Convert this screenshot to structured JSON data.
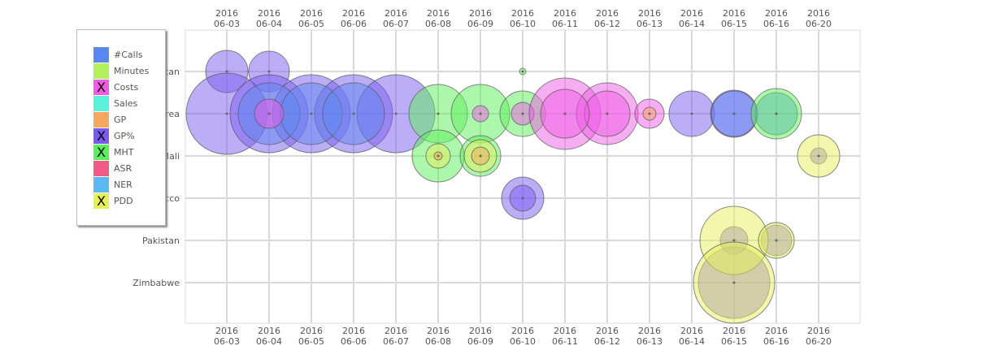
{
  "chart_data": {
    "type": "scatter",
    "x_categories": [
      [
        "2016",
        "06-03"
      ],
      [
        "2016",
        "06-04"
      ],
      [
        "2016",
        "06-05"
      ],
      [
        "2016",
        "06-06"
      ],
      [
        "2016",
        "06-07"
      ],
      [
        "2016",
        "06-08"
      ],
      [
        "2016",
        "06-09"
      ],
      [
        "2016",
        "06-10"
      ],
      [
        "2016",
        "06-11"
      ],
      [
        "2016",
        "06-12"
      ],
      [
        "2016",
        "06-13"
      ],
      [
        "2016",
        "06-14"
      ],
      [
        "2016",
        "06-15"
      ],
      [
        "2016",
        "06-16"
      ],
      [
        "2016",
        "06-20"
      ]
    ],
    "y_categories": [
      "Afghanistan",
      "Eritrea",
      "Mali",
      "Morocco",
      "Pakistan",
      "Zimbabwe"
    ],
    "legend": [
      {
        "label": "#Calls",
        "color": "#5b87f0",
        "disabled": false
      },
      {
        "label": "Minutes",
        "color": "#b3f05b",
        "disabled": false
      },
      {
        "label": "Costs",
        "color": "#f05be6",
        "disabled": true
      },
      {
        "label": "Sales",
        "color": "#5bf0d9",
        "disabled": false
      },
      {
        "label": "GP",
        "color": "#f5a85e",
        "disabled": false
      },
      {
        "label": "GP%",
        "color": "#7a5bf0",
        "disabled": true
      },
      {
        "label": "MHT",
        "color": "#5bf05b",
        "disabled": true
      },
      {
        "label": "ASR",
        "color": "#f05b87",
        "disabled": false
      },
      {
        "label": "NER",
        "color": "#5bb8f0",
        "disabled": false
      },
      {
        "label": "PDD",
        "color": "#e6f05b",
        "disabled": true
      }
    ],
    "series": [
      {
        "name": "GP%",
        "color": "#7a5bf0",
        "points": [
          {
            "x": 0,
            "y": 0,
            "r": 26
          },
          {
            "x": 1,
            "y": 0,
            "r": 25
          },
          {
            "x": 0,
            "y": 1,
            "r": 50
          },
          {
            "x": 1,
            "y": 1,
            "r": 48
          },
          {
            "x": 2,
            "y": 1,
            "r": 48
          },
          {
            "x": 3,
            "y": 1,
            "r": 48
          },
          {
            "x": 4,
            "y": 1,
            "r": 48
          },
          {
            "x": 7,
            "y": 3,
            "r": 26
          },
          {
            "x": 7,
            "y": 3,
            "r": 16
          },
          {
            "x": 11,
            "y": 1,
            "r": 28
          },
          {
            "x": 12,
            "y": 1,
            "r": 29
          },
          {
            "x": 12,
            "y": 4,
            "r": 17
          },
          {
            "x": 12,
            "y": 5,
            "r": 44
          },
          {
            "x": 13,
            "y": 4,
            "r": 19
          },
          {
            "x": 14,
            "y": 2,
            "r": 10
          }
        ]
      },
      {
        "name": "#Calls",
        "color": "#5b87f0",
        "points": [
          {
            "x": 1,
            "y": 1,
            "r": 38
          },
          {
            "x": 2,
            "y": 1,
            "r": 38
          },
          {
            "x": 3,
            "y": 1,
            "r": 38
          },
          {
            "x": 12,
            "y": 1,
            "r": 28
          },
          {
            "x": 13,
            "y": 1,
            "r": 26
          }
        ]
      },
      {
        "name": "MHT",
        "color": "#5bf05b",
        "points": [
          {
            "x": 5,
            "y": 1,
            "r": 36
          },
          {
            "x": 6,
            "y": 1,
            "r": 36
          },
          {
            "x": 7,
            "y": 1,
            "r": 28
          },
          {
            "x": 5,
            "y": 2,
            "r": 32
          },
          {
            "x": 6,
            "y": 2,
            "r": 25
          },
          {
            "x": 7,
            "y": 0,
            "r": 4
          },
          {
            "x": 13,
            "y": 1,
            "r": 31
          }
        ]
      },
      {
        "name": "Costs",
        "color": "#f05be6",
        "points": [
          {
            "x": 1,
            "y": 1,
            "r": 18
          },
          {
            "x": 6,
            "y": 1,
            "r": 10
          },
          {
            "x": 7,
            "y": 1,
            "r": 14
          },
          {
            "x": 8,
            "y": 1,
            "r": 44
          },
          {
            "x": 9,
            "y": 1,
            "r": 38
          },
          {
            "x": 9,
            "y": 1,
            "r": 28
          },
          {
            "x": 8,
            "y": 1,
            "r": 30
          },
          {
            "x": 10,
            "y": 1,
            "r": 18
          }
        ]
      },
      {
        "name": "PDD",
        "color": "#e6f05b",
        "points": [
          {
            "x": 5,
            "y": 2,
            "r": 15
          },
          {
            "x": 6,
            "y": 2,
            "r": 20
          },
          {
            "x": 12,
            "y": 4,
            "r": 42
          },
          {
            "x": 12,
            "y": 5,
            "r": 50
          },
          {
            "x": 13,
            "y": 4,
            "r": 22
          },
          {
            "x": 14,
            "y": 2,
            "r": 26
          }
        ]
      },
      {
        "name": "GP",
        "color": "#f5a85e",
        "points": [
          {
            "x": 5,
            "y": 2,
            "r": 5
          },
          {
            "x": 6,
            "y": 2,
            "r": 11
          },
          {
            "x": 10,
            "y": 1,
            "r": 8
          }
        ]
      }
    ]
  }
}
